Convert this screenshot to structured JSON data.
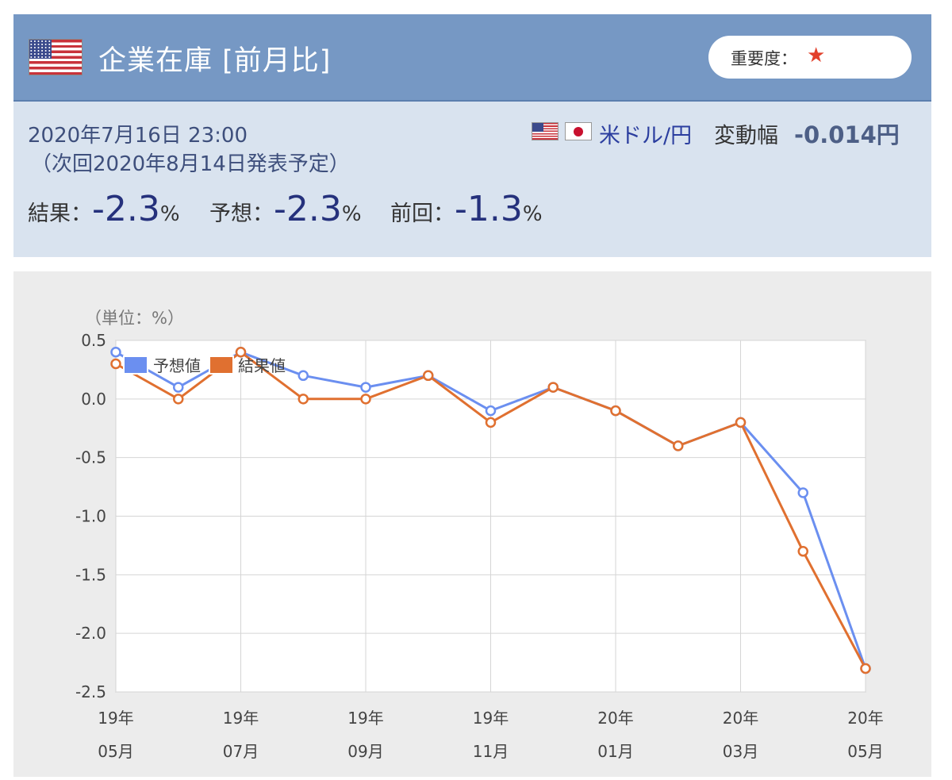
{
  "header": {
    "title": "企業在庫 [前月比]",
    "importance_label": "重要度：",
    "importance_star": "★",
    "flag_icon": "us-flag-icon"
  },
  "info": {
    "datetime": "2020年7月16日 23:00",
    "next_release": "（次回2020年8月14日発表予定）",
    "pair": "米ドル/円",
    "change_label": "変動幅",
    "change_value": "-0.014円",
    "result_label": "結果：",
    "result_value": "-2.3",
    "forecast_label": "予想：",
    "forecast_value": "-2.3",
    "previous_label": "前回：",
    "previous_value": "-1.3",
    "percent": "%"
  },
  "chart_data": {
    "type": "line",
    "unit_label": "（単位：%）",
    "x": [
      "19年05月",
      "19年06月",
      "19年07月",
      "19年08月",
      "19年09月",
      "19年10月",
      "19年11月",
      "19年12月",
      "20年01月",
      "20年02月",
      "20年03月",
      "20年04月",
      "20年05月"
    ],
    "tick_labels": [
      {
        "top": "19年",
        "bottom": "05月",
        "index": 0
      },
      {
        "top": "19年",
        "bottom": "07月",
        "index": 2
      },
      {
        "top": "19年",
        "bottom": "09月",
        "index": 4
      },
      {
        "top": "19年",
        "bottom": "11月",
        "index": 6
      },
      {
        "top": "20年",
        "bottom": "01月",
        "index": 8
      },
      {
        "top": "20年",
        "bottom": "03月",
        "index": 10
      },
      {
        "top": "20年",
        "bottom": "05月",
        "index": 12
      }
    ],
    "y_ticks": [
      0.5,
      0.0,
      -0.5,
      -1.0,
      -1.5,
      -2.0,
      -2.5
    ],
    "y_tick_labels": [
      "0.5",
      "0.0",
      "-0.5",
      "-1.0",
      "-1.5",
      "-2.0",
      "-2.5"
    ],
    "ylim": [
      -2.5,
      0.5
    ],
    "grid": true,
    "legend_position": "top-left",
    "series": [
      {
        "name": "予想値",
        "color": "#6b8ff0",
        "values": [
          0.4,
          0.1,
          0.4,
          0.2,
          0.1,
          0.2,
          -0.1,
          0.1,
          -0.1,
          -0.4,
          -0.2,
          -0.8,
          -2.3
        ]
      },
      {
        "name": "結果値",
        "color": "#e07030",
        "values": [
          0.3,
          0.0,
          0.4,
          0.0,
          0.0,
          0.2,
          -0.2,
          0.1,
          -0.1,
          -0.4,
          -0.2,
          -1.3,
          -2.3
        ]
      }
    ]
  }
}
